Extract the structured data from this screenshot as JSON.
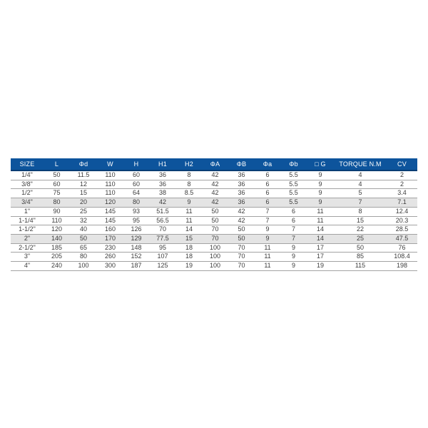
{
  "page": {
    "background": "#ffffff",
    "description": "Valve dimension specification table"
  },
  "table": {
    "columns": [
      "SIZE",
      "L",
      "Φd",
      "W",
      "H",
      "H1",
      "H2",
      "ΦA",
      "ΦB",
      "Φa",
      "Φb",
      "□ G",
      "TORQUE N.M",
      "CV"
    ],
    "rows": [
      [
        "1/4\"",
        "50",
        "11.5",
        "110",
        "60",
        "36",
        "8",
        "42",
        "36",
        "6",
        "5.5",
        "9",
        "4",
        "2"
      ],
      [
        "3/8\"",
        "60",
        "12",
        "110",
        "60",
        "36",
        "8",
        "42",
        "36",
        "6",
        "5.5",
        "9",
        "4",
        "2"
      ],
      [
        "1/2\"",
        "75",
        "15",
        "110",
        "64",
        "38",
        "8.5",
        "42",
        "36",
        "6",
        "5.5",
        "9",
        "5",
        "3.4"
      ],
      [
        "3/4\"",
        "80",
        "20",
        "120",
        "80",
        "42",
        "9",
        "42",
        "36",
        "6",
        "5.5",
        "9",
        "7",
        "7.1"
      ],
      [
        "1\"",
        "90",
        "25",
        "145",
        "93",
        "51.5",
        "11",
        "50",
        "42",
        "7",
        "6",
        "11",
        "8",
        "12.4"
      ],
      [
        "1-1/4\"",
        "110",
        "32",
        "145",
        "95",
        "56.5",
        "11",
        "50",
        "42",
        "7",
        "6",
        "11",
        "15",
        "20.3"
      ],
      [
        "1-1/2\"",
        "120",
        "40",
        "160",
        "126",
        "70",
        "14",
        "70",
        "50",
        "9",
        "7",
        "14",
        "22",
        "28.5"
      ],
      [
        "2\"",
        "140",
        "50",
        "170",
        "129",
        "77.5",
        "15",
        "70",
        "50",
        "9",
        "7",
        "14",
        "25",
        "47.5"
      ],
      [
        "2-1/2\"",
        "185",
        "65",
        "230",
        "148",
        "95",
        "18",
        "100",
        "70",
        "11",
        "9",
        "17",
        "50",
        "76"
      ],
      [
        "3\"",
        "205",
        "80",
        "260",
        "152",
        "107",
        "18",
        "100",
        "70",
        "11",
        "9",
        "17",
        "85",
        "108.4"
      ],
      [
        "4\"",
        "240",
        "100",
        "300",
        "187",
        "125",
        "19",
        "100",
        "70",
        "11",
        "9",
        "19",
        "115",
        "198"
      ]
    ],
    "shaded_rows": [
      3,
      7
    ],
    "colors": {
      "header_bg": "#0d549c",
      "header_text": "#ffffff",
      "row_line": "#a3a3a3",
      "shaded_row_bg": "#e4e4e4",
      "cell_text": "#3d3d3d"
    }
  }
}
